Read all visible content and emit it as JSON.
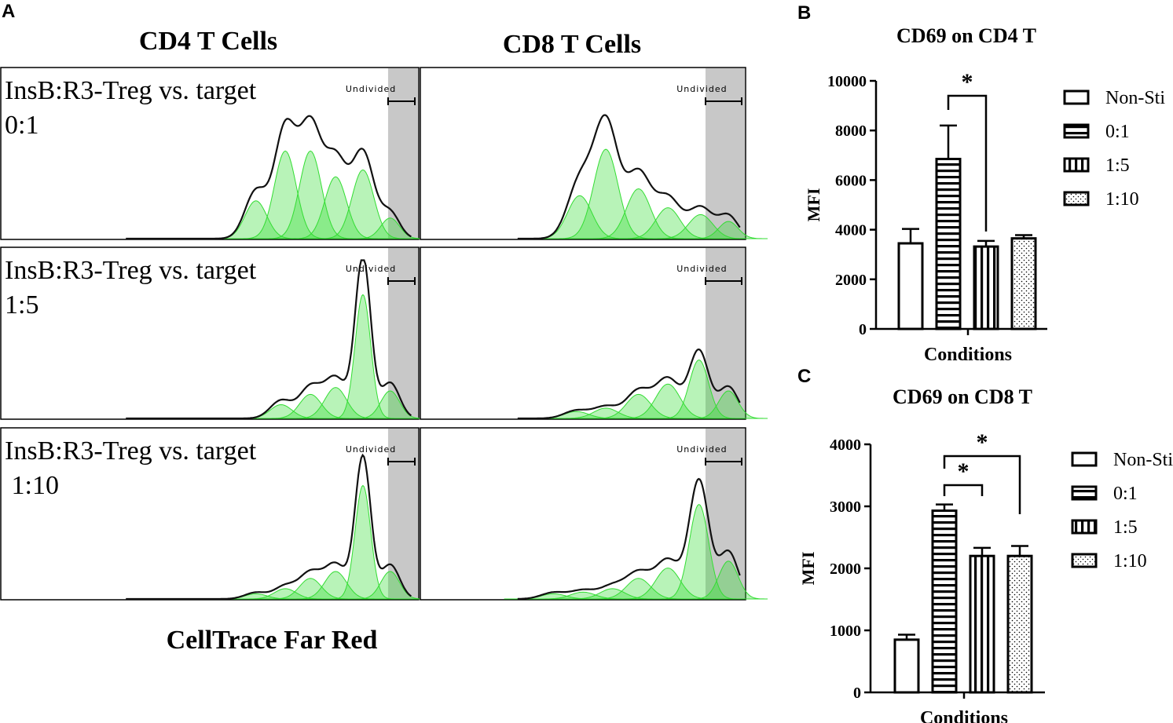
{
  "colors": {
    "green": "#33dd33",
    "gate": "#c8c8c8",
    "black": "#000000"
  },
  "panelA": {
    "letter": "A",
    "col_titles": [
      "CD4 T Cells",
      "CD8 T Cells"
    ],
    "row_labels": [
      [
        "InsB:R3-Treg vs. target",
        "0:1"
      ],
      [
        "InsB:R3-Treg vs. target",
        "1:5"
      ],
      [
        "InsB:R3-Treg vs. target",
        " 1:10"
      ]
    ],
    "gate_label": "Undivided",
    "xlabel": "CellTrace Far Red"
  },
  "chart_data": [
    {
      "panel": "B",
      "type": "bar",
      "title": "CD69 on CD4 T",
      "xlabel": "Conditions",
      "ylabel": "MFI",
      "ylim": [
        0,
        10000
      ],
      "yticks": [
        0,
        2000,
        4000,
        6000,
        8000,
        10000
      ],
      "categories": [
        "Non-Sti",
        "0:1",
        "1:5",
        "1:10"
      ],
      "values": [
        3450,
        6850,
        3320,
        3650
      ],
      "errors": [
        580,
        1350,
        230,
        130
      ],
      "patterns": [
        "open",
        "hstripe",
        "vstripe",
        "dots"
      ],
      "significance": [
        {
          "from": 1,
          "to": 2,
          "label": "*"
        }
      ]
    },
    {
      "panel": "C",
      "type": "bar",
      "title": "CD69 on CD8 T",
      "xlabel": "Conditions",
      "ylabel": "MFI",
      "ylim": [
        0,
        4000
      ],
      "yticks": [
        0,
        1000,
        2000,
        3000,
        4000
      ],
      "categories": [
        "Non-Sti",
        "0:1",
        "1:5",
        "1:10"
      ],
      "values": [
        850,
        2930,
        2200,
        2200
      ],
      "errors": [
        80,
        100,
        130,
        160
      ],
      "patterns": [
        "open",
        "hstripe",
        "vstripe",
        "dots"
      ],
      "significance": [
        {
          "from": 1,
          "to": 2,
          "label": "*"
        },
        {
          "from": 1,
          "to": 3,
          "label": "*"
        }
      ]
    }
  ]
}
